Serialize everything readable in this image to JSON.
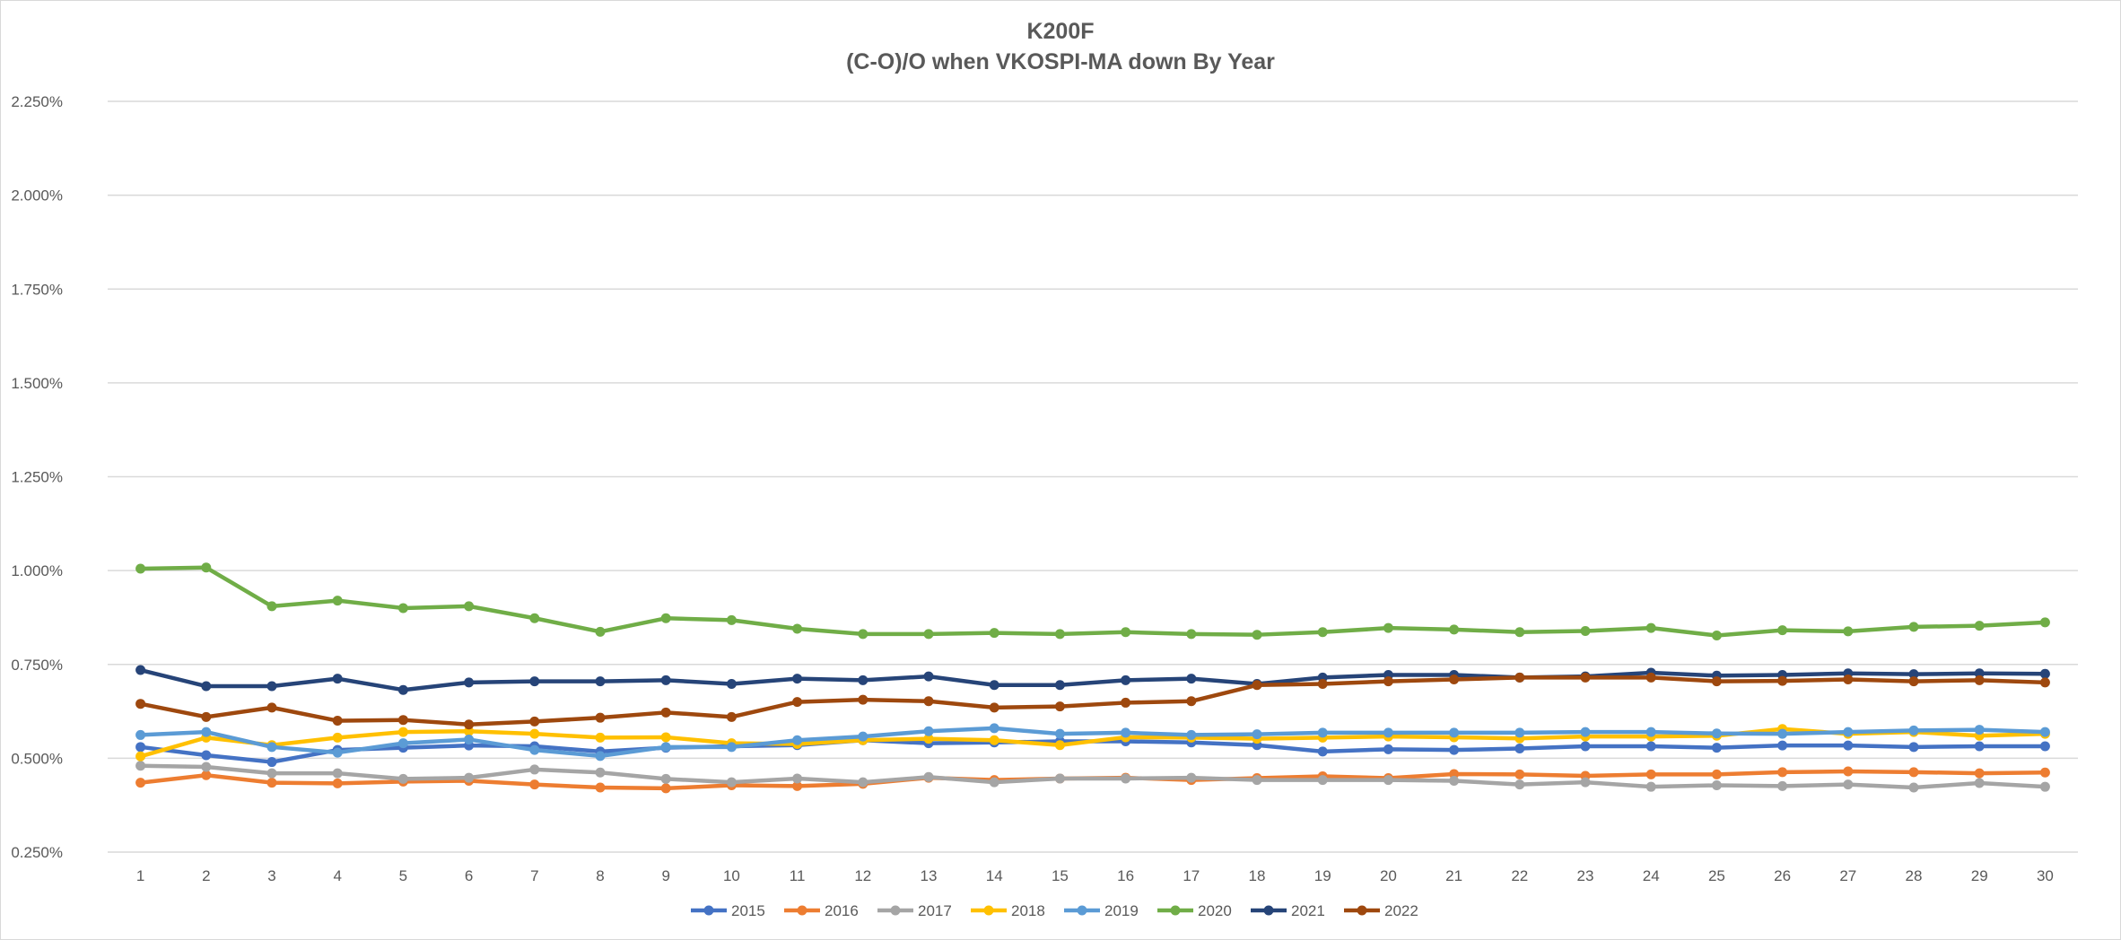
{
  "chart_data": {
    "type": "line",
    "title": "K200F",
    "subtitle": "(C-O)/O when VKOSPI-MA down By Year",
    "xlabel": "",
    "ylabel": "",
    "ylim": [
      0.25,
      2.25
    ],
    "y_ticks": [
      "0.250%",
      "0.500%",
      "0.750%",
      "1.000%",
      "1.250%",
      "1.500%",
      "1.750%",
      "2.000%",
      "2.250%"
    ],
    "y_tick_values": [
      0.25,
      0.5,
      0.75,
      1.0,
      1.25,
      1.5,
      1.75,
      2.0,
      2.25
    ],
    "grid": true,
    "legend_position": "bottom",
    "x": [
      1,
      2,
      3,
      4,
      5,
      6,
      7,
      8,
      9,
      10,
      11,
      12,
      13,
      14,
      15,
      16,
      17,
      18,
      19,
      20,
      21,
      22,
      23,
      24,
      25,
      26,
      27,
      28,
      29,
      30
    ],
    "series": [
      {
        "name": "2015",
        "color": "#4472C4",
        "values": [
          0.53,
          0.508,
          0.49,
          0.522,
          0.528,
          0.534,
          0.532,
          0.518,
          0.528,
          0.532,
          0.535,
          0.548,
          0.54,
          0.542,
          0.545,
          0.545,
          0.542,
          0.535,
          0.518,
          0.524,
          0.522,
          0.526,
          0.532,
          0.532,
          0.528,
          0.534,
          0.534,
          0.53,
          0.532,
          0.532
        ]
      },
      {
        "name": "2016",
        "color": "#ED7D31",
        "values": [
          0.435,
          0.455,
          0.435,
          0.433,
          0.438,
          0.44,
          0.43,
          0.422,
          0.42,
          0.428,
          0.426,
          0.432,
          0.448,
          0.442,
          0.446,
          0.448,
          0.442,
          0.447,
          0.452,
          0.447,
          0.458,
          0.457,
          0.453,
          0.457,
          0.457,
          0.463,
          0.465,
          0.463,
          0.46,
          0.462
        ]
      },
      {
        "name": "2017",
        "color": "#A5A5A5",
        "values": [
          0.48,
          0.477,
          0.46,
          0.46,
          0.445,
          0.448,
          0.47,
          0.462,
          0.445,
          0.436,
          0.446,
          0.436,
          0.45,
          0.436,
          0.446,
          0.446,
          0.448,
          0.442,
          0.442,
          0.442,
          0.44,
          0.43,
          0.436,
          0.424,
          0.428,
          0.426,
          0.43,
          0.422,
          0.434,
          0.424
        ]
      },
      {
        "name": "2018",
        "color": "#FFC000",
        "values": [
          0.505,
          0.555,
          0.535,
          0.555,
          0.57,
          0.572,
          0.565,
          0.555,
          0.556,
          0.54,
          0.538,
          0.548,
          0.552,
          0.548,
          0.535,
          0.556,
          0.555,
          0.552,
          0.555,
          0.558,
          0.556,
          0.553,
          0.558,
          0.558,
          0.56,
          0.578,
          0.565,
          0.57,
          0.56,
          0.565
        ]
      },
      {
        "name": "2019",
        "color": "#5B9BD5",
        "values": [
          0.562,
          0.57,
          0.53,
          0.515,
          0.54,
          0.55,
          0.522,
          0.506,
          0.53,
          0.53,
          0.548,
          0.558,
          0.572,
          0.58,
          0.565,
          0.568,
          0.562,
          0.564,
          0.568,
          0.568,
          0.568,
          0.568,
          0.57,
          0.57,
          0.566,
          0.565,
          0.57,
          0.574,
          0.576,
          0.57
        ]
      },
      {
        "name": "2020",
        "color": "#70AD47",
        "values": [
          1.005,
          1.008,
          0.905,
          0.92,
          0.9,
          0.905,
          0.873,
          0.837,
          0.873,
          0.868,
          0.845,
          0.831,
          0.831,
          0.834,
          0.831,
          0.836,
          0.831,
          0.829,
          0.836,
          0.847,
          0.843,
          0.836,
          0.839,
          0.847,
          0.827,
          0.841,
          0.838,
          0.85,
          0.853,
          0.862
        ]
      },
      {
        "name": "2021",
        "color": "#264478",
        "values": [
          0.735,
          0.692,
          0.692,
          0.712,
          0.682,
          0.702,
          0.705,
          0.705,
          0.708,
          0.698,
          0.712,
          0.708,
          0.718,
          0.695,
          0.695,
          0.708,
          0.712,
          0.698,
          0.715,
          0.722,
          0.722,
          0.715,
          0.718,
          0.728,
          0.72,
          0.722,
          0.726,
          0.724,
          0.726,
          0.725
        ]
      },
      {
        "name": "2022",
        "color": "#9E480E",
        "values": [
          0.645,
          0.61,
          0.635,
          0.6,
          0.602,
          0.59,
          0.598,
          0.608,
          0.622,
          0.61,
          0.65,
          0.656,
          0.652,
          0.635,
          0.638,
          0.648,
          0.652,
          0.695,
          0.698,
          0.705,
          0.71,
          0.715,
          0.715,
          0.715,
          0.705,
          0.706,
          0.71,
          0.705,
          0.708,
          0.702
        ]
      }
    ]
  }
}
